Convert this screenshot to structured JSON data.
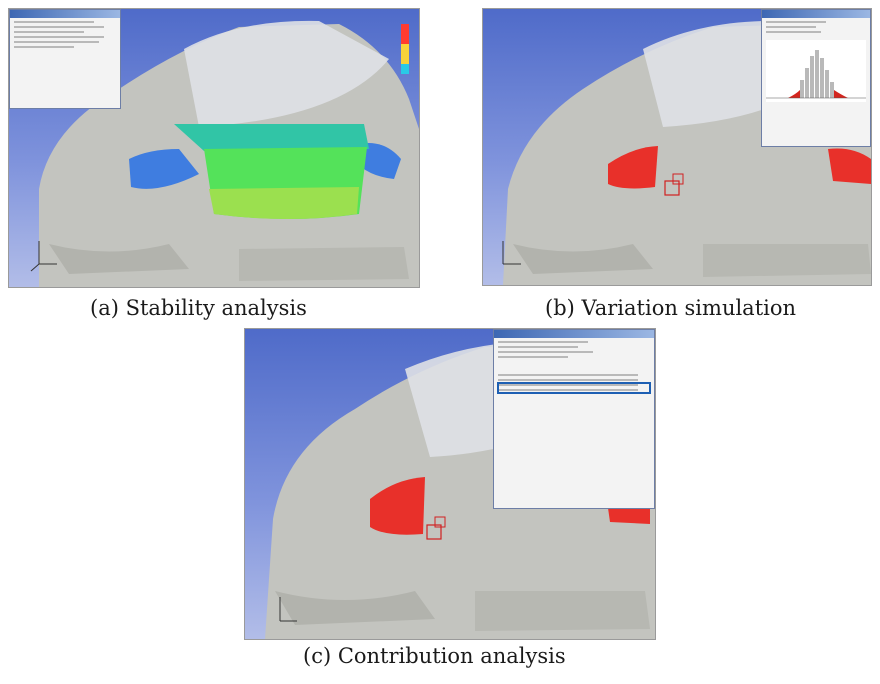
{
  "captions": {
    "a": "(a) Stability analysis",
    "b": "(b) Variation simulation",
    "c": "(c) Contribution analysis"
  },
  "colors": {
    "viewport_bg_top": "#4f6bc9",
    "viewport_bg_bottom": "#b2bde8",
    "car_body": "#bfc0ba",
    "taillight_highlight": "#e8302a",
    "window_title_bar": "#3d67b3",
    "highlight_row_border": "#1d5fb3"
  },
  "icons": {
    "coordinate_axes": "axis-triad-icon",
    "histogram": "histogram-icon",
    "color_scale": "color-scale-icon"
  }
}
